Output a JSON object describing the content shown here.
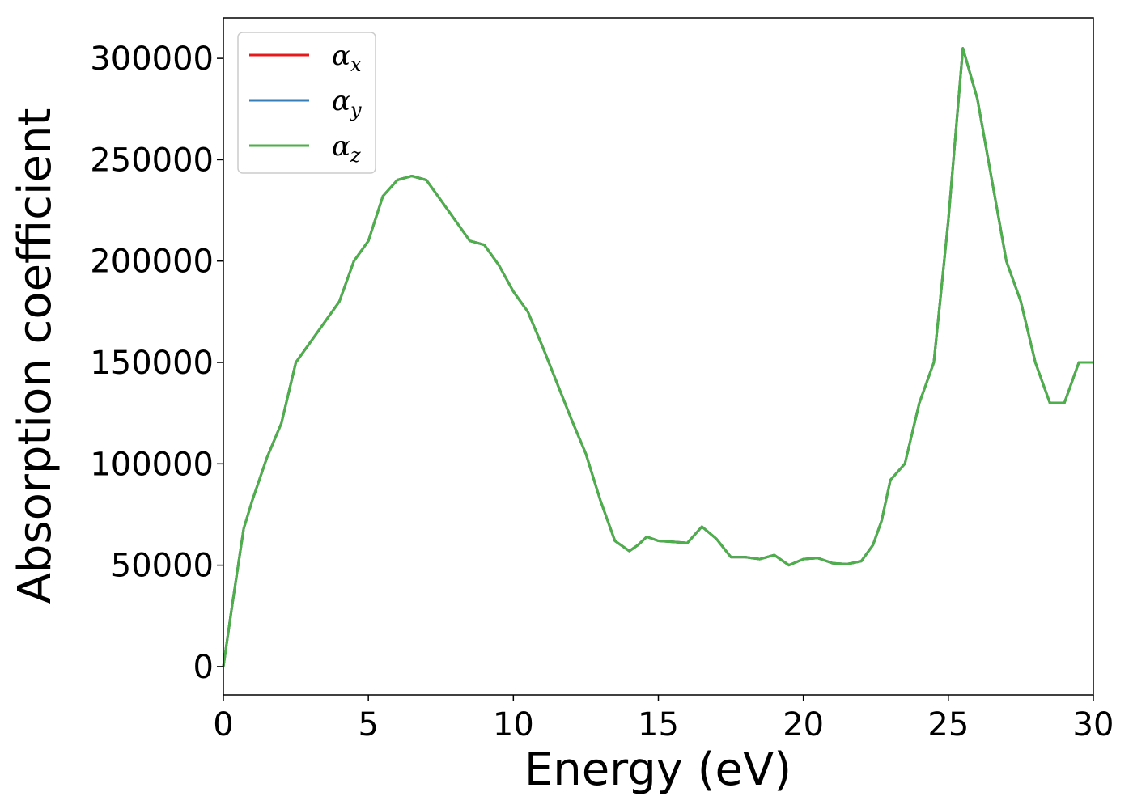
{
  "chart_data": {
    "type": "line",
    "title": "",
    "xlabel": "Energy (eV)",
    "ylabel": "Absorption coefficient",
    "xlim": [
      0,
      30
    ],
    "ylim": [
      -14000,
      320000
    ],
    "xticks": [
      0,
      5,
      10,
      15,
      20,
      25,
      30
    ],
    "yticks": [
      0,
      50000,
      100000,
      150000,
      200000,
      250000,
      300000
    ],
    "grid": false,
    "legend": "top-left",
    "x": [
      0,
      0.3,
      0.7,
      1.0,
      1.5,
      2.0,
      2.5,
      3.0,
      3.5,
      4.0,
      4.5,
      5.0,
      5.5,
      6.0,
      6.5,
      7.0,
      7.5,
      8.0,
      8.5,
      9.0,
      9.5,
      10.0,
      10.5,
      11.0,
      11.5,
      12.0,
      12.5,
      13.0,
      13.5,
      14.0,
      14.3,
      14.6,
      15.0,
      15.5,
      16.0,
      16.5,
      17.0,
      17.5,
      18.0,
      18.5,
      19.0,
      19.5,
      20.0,
      20.5,
      21.0,
      21.5,
      22.0,
      22.4,
      22.7,
      23.0,
      23.5,
      24.0,
      24.5,
      25.0,
      25.5,
      26.0,
      26.5,
      27.0,
      27.5,
      28.0,
      28.5,
      29.0,
      29.5,
      30.0
    ],
    "series": [
      {
        "name": "α_x",
        "label_main": "α",
        "label_sub": "x",
        "color": "#e41a1c",
        "values": [
          0,
          30000,
          68000,
          82000,
          103000,
          120000,
          150000,
          160000,
          170000,
          180000,
          200000,
          210000,
          232000,
          240000,
          242000,
          240000,
          230000,
          220000,
          210000,
          208000,
          198000,
          185000,
          175000,
          158000,
          140000,
          122000,
          105000,
          82000,
          62000,
          57000,
          60000,
          64000,
          62000,
          61500,
          61000,
          69000,
          63000,
          54000,
          54000,
          53000,
          55000,
          50000,
          53000,
          53500,
          51000,
          50500,
          52000,
          60000,
          72000,
          92000,
          100000,
          130000,
          150000,
          220000,
          305000,
          280000,
          240000,
          200000,
          180000,
          150000,
          130000,
          130000,
          150000,
          150000
        ]
      },
      {
        "name": "α_y",
        "label_main": "α",
        "label_sub": "y",
        "color": "#377eb8",
        "values": [
          0,
          30000,
          68000,
          82000,
          103000,
          120000,
          150000,
          160000,
          170000,
          180000,
          200000,
          210000,
          232000,
          240000,
          242000,
          240000,
          230000,
          220000,
          210000,
          208000,
          198000,
          185000,
          175000,
          158000,
          140000,
          122000,
          105000,
          82000,
          62000,
          57000,
          60000,
          64000,
          62000,
          61500,
          61000,
          69000,
          63000,
          54000,
          54000,
          53000,
          55000,
          50000,
          53000,
          53500,
          51000,
          50500,
          52000,
          60000,
          72000,
          92000,
          100000,
          130000,
          150000,
          220000,
          305000,
          280000,
          240000,
          200000,
          180000,
          150000,
          130000,
          130000,
          150000,
          150000
        ]
      },
      {
        "name": "α_z",
        "label_main": "α",
        "label_sub": "z",
        "color": "#4daf4a",
        "values": [
          0,
          30000,
          68000,
          82000,
          103000,
          120000,
          150000,
          160000,
          170000,
          180000,
          200000,
          210000,
          232000,
          240000,
          242000,
          240000,
          230000,
          220000,
          210000,
          208000,
          198000,
          185000,
          175000,
          158000,
          140000,
          122000,
          105000,
          82000,
          62000,
          57000,
          60000,
          64000,
          62000,
          61500,
          61000,
          69000,
          63000,
          54000,
          54000,
          53000,
          55000,
          50000,
          53000,
          53500,
          51000,
          50500,
          52000,
          60000,
          72000,
          92000,
          100000,
          130000,
          150000,
          220000,
          305000,
          280000,
          240000,
          200000,
          180000,
          150000,
          130000,
          130000,
          150000,
          150000
        ]
      }
    ]
  }
}
